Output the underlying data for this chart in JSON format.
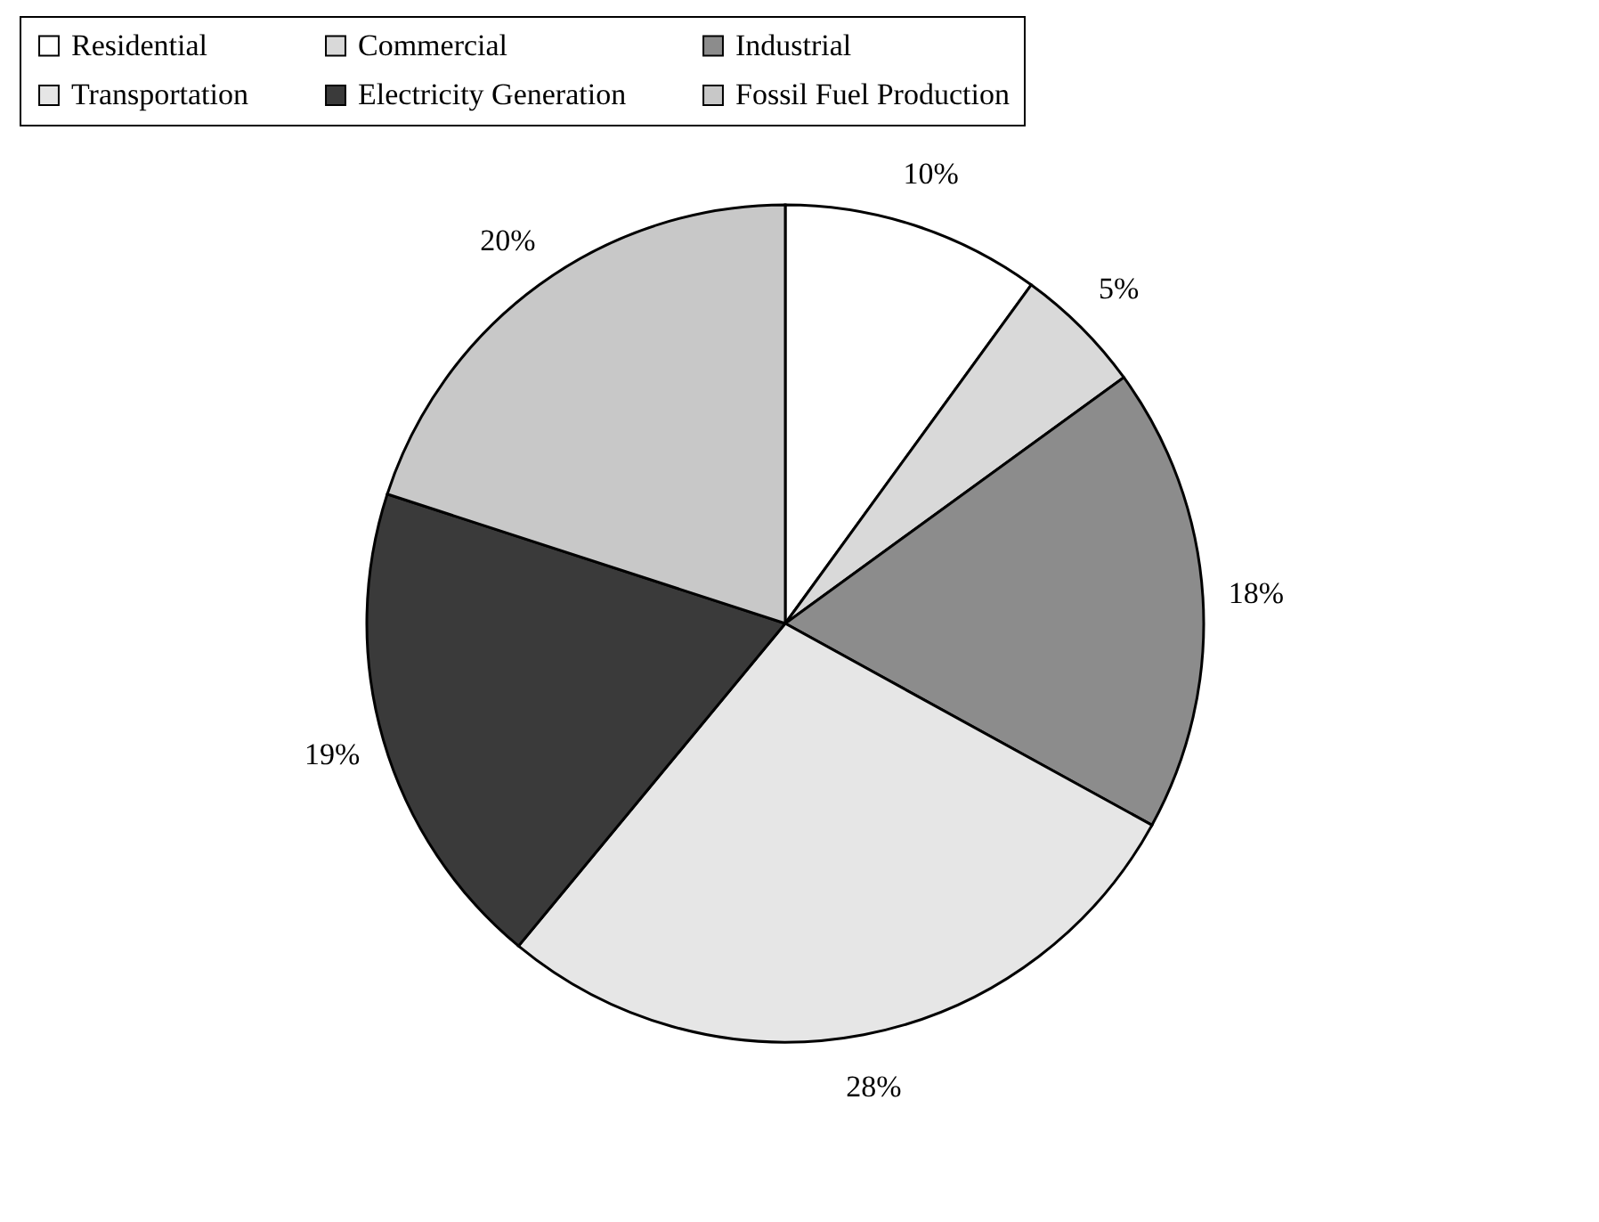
{
  "chart_data": {
    "type": "pie",
    "categories": [
      "Residential",
      "Commercial",
      "Industrial",
      "Transportation",
      "Electricity Generation",
      "Fossil Fuel Production"
    ],
    "values": [
      10,
      5,
      18,
      28,
      19,
      20
    ],
    "colors": [
      "#ffffff",
      "#d9d9d9",
      "#8c8c8c",
      "#e6e6e6",
      "#3a3a3a",
      "#c8c8c8"
    ],
    "value_labels": [
      "10%",
      "5%",
      "18%",
      "28%",
      "19%",
      "20%"
    ],
    "legend": "top"
  }
}
